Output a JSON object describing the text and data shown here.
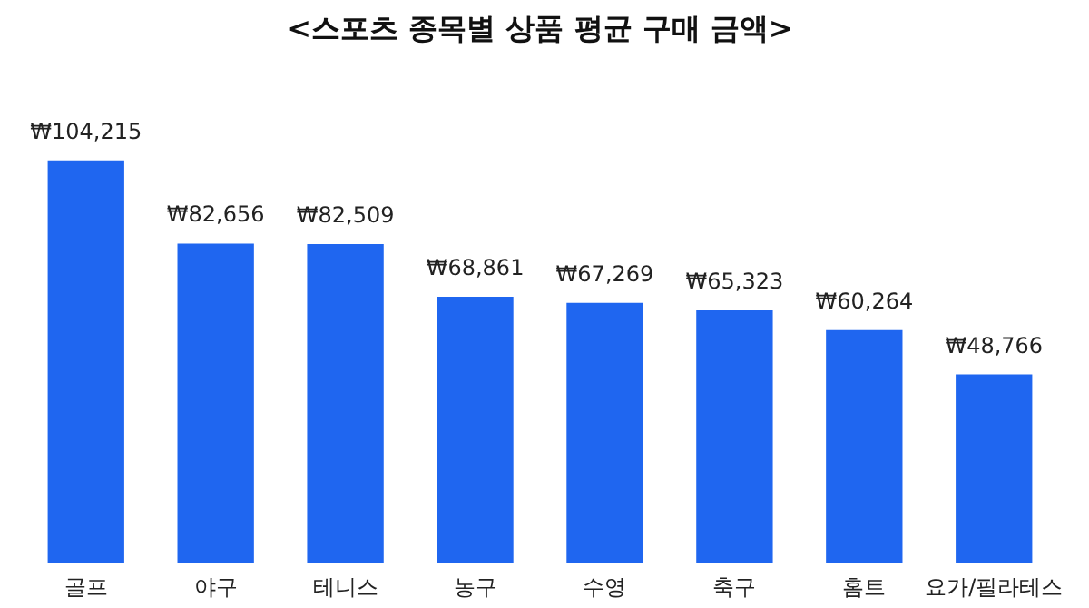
{
  "chart_data": {
    "type": "bar",
    "title": "<스포츠 종목별 상품 평균 구매 금액>",
    "categories": [
      "골프",
      "야구",
      "테니스",
      "농구",
      "수영",
      "축구",
      "홈트",
      "요가/필라테스"
    ],
    "values": [
      104215,
      82656,
      82509,
      68861,
      67269,
      65323,
      60264,
      48766
    ],
    "value_labels": [
      "₩104,215",
      "₩82,656",
      "₩82,509",
      "₩68,861",
      "₩67,269",
      "₩65,323",
      "₩60,264",
      "₩48,766"
    ],
    "color": "#1f66f0"
  }
}
